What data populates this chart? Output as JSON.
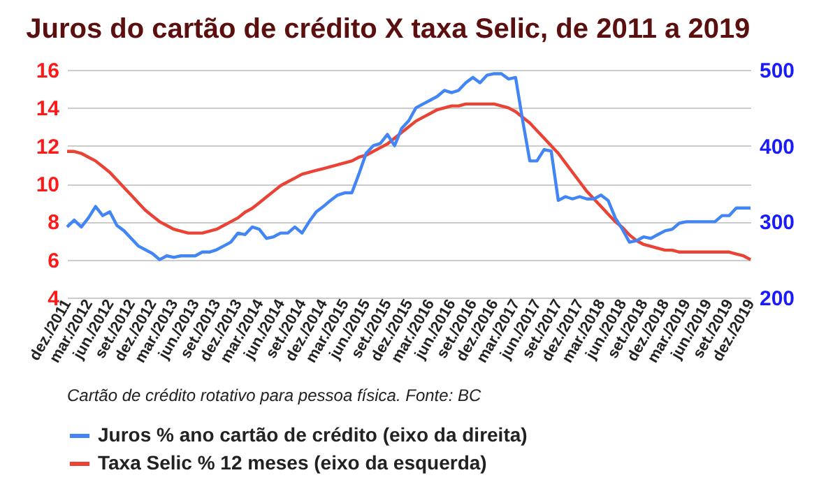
{
  "chart_data": {
    "type": "line",
    "title": "Juros do cartão de crédito X taxa Selic, de 2011 a 2019",
    "categories": [
      "dez./2011",
      null,
      null,
      "mar./2012",
      null,
      null,
      "jun./2012",
      null,
      null,
      "set./2012",
      null,
      null,
      "dez./2012",
      null,
      null,
      "mar./2013",
      null,
      null,
      "jun./2013",
      null,
      null,
      "set./2013",
      null,
      null,
      "dez./2013",
      null,
      null,
      "mar./2014",
      null,
      null,
      "jun./2014",
      null,
      null,
      "set./2014",
      null,
      null,
      "dez./2014",
      null,
      null,
      "mar./2015",
      null,
      null,
      "jun./2015",
      null,
      null,
      "set./2015",
      null,
      null,
      "dez./2015",
      null,
      null,
      "mar./2016",
      null,
      null,
      "jun./2016",
      null,
      null,
      "set./2016",
      null,
      null,
      "dez./2016",
      null,
      null,
      "mar./2017",
      null,
      null,
      "jun./2017",
      null,
      null,
      "set./2017",
      null,
      null,
      "dez./2017",
      null,
      null,
      "mar./2018",
      null,
      null,
      "jun./2018",
      null,
      null,
      "set./2018",
      null,
      null,
      "dez./2018",
      null,
      null,
      "mar./2019",
      null,
      null,
      "jun./2019",
      null,
      null,
      "set./2019",
      null,
      null,
      "dez./2019"
    ],
    "series": [
      {
        "name": "Juros % ano cartão de crédito (eixo da direita)",
        "color": "#4285f4",
        "axis": "y2",
        "values": [
          293,
          302,
          293,
          305,
          320,
          308,
          313,
          295,
          288,
          278,
          268,
          263,
          258,
          250,
          255,
          253,
          255,
          255,
          255,
          260,
          260,
          263,
          268,
          273,
          285,
          283,
          293,
          290,
          278,
          280,
          285,
          285,
          293,
          285,
          300,
          313,
          320,
          328,
          335,
          338,
          338,
          363,
          390,
          400,
          403,
          415,
          400,
          423,
          433,
          450,
          455,
          460,
          465,
          473,
          470,
          473,
          483,
          490,
          483,
          493,
          495,
          495,
          488,
          490,
          433,
          380,
          380,
          395,
          393,
          328,
          333,
          330,
          333,
          330,
          330,
          335,
          328,
          305,
          290,
          273,
          275,
          280,
          278,
          283,
          288,
          290,
          298,
          300,
          300,
          300,
          300,
          300,
          308,
          308,
          318,
          318,
          318
        ]
      },
      {
        "name": "Taxa Selic % 12 meses (eixo da esquerda)",
        "color": "#ea4335",
        "values": [
          11.7,
          11.7,
          11.6,
          11.4,
          11.2,
          10.9,
          10.6,
          10.2,
          9.8,
          9.4,
          9.0,
          8.6,
          8.3,
          8.0,
          7.8,
          7.6,
          7.5,
          7.4,
          7.4,
          7.4,
          7.5,
          7.6,
          7.8,
          8.0,
          8.2,
          8.5,
          8.7,
          9.0,
          9.3,
          9.6,
          9.9,
          10.1,
          10.3,
          10.5,
          10.6,
          10.7,
          10.8,
          10.9,
          11.0,
          11.1,
          11.2,
          11.4,
          11.5,
          11.7,
          11.9,
          12.1,
          12.4,
          12.7,
          13.0,
          13.3,
          13.5,
          13.7,
          13.9,
          14.0,
          14.1,
          14.1,
          14.2,
          14.2,
          14.2,
          14.2,
          14.2,
          14.1,
          14.0,
          13.8,
          13.5,
          13.2,
          12.8,
          12.4,
          12.0,
          11.6,
          11.1,
          10.6,
          10.1,
          9.6,
          9.2,
          8.8,
          8.4,
          8.0,
          7.7,
          7.3,
          7.0,
          6.8,
          6.7,
          6.6,
          6.5,
          6.5,
          6.4,
          6.4,
          6.4,
          6.4,
          6.4,
          6.4,
          6.4,
          6.4,
          6.3,
          6.2,
          6.0
        ]
      }
    ],
    "ylim": [
      4,
      16
    ],
    "yticks": [
      4,
      6,
      8,
      10,
      12,
      14,
      16
    ],
    "y2lim": [
      200,
      500
    ],
    "y2ticks": [
      200,
      300,
      400,
      500
    ],
    "grid": "y",
    "legend": "bottom",
    "marker": "none",
    "line_style": "solid",
    "annotations": [
      "Cartão de crédito rotativo para pessoa física.  Fonte: BC"
    ]
  }
}
